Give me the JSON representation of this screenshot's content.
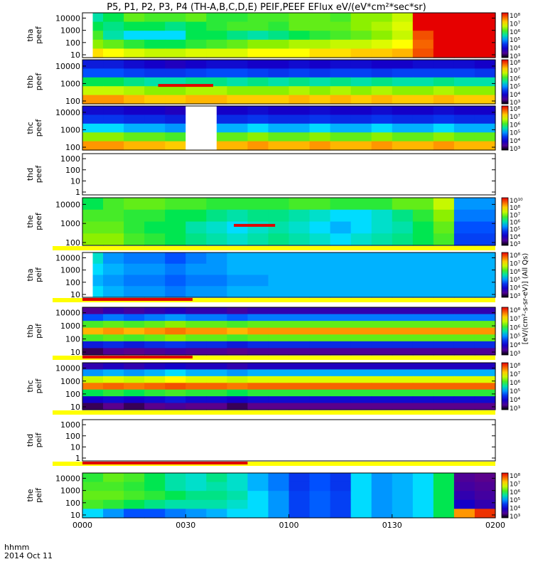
{
  "chart_data": {
    "type": "heatmap",
    "title": "P5, P1, P2, P3, P4 (TH-A,B,C,D,E) PEIF,PEEF EFlux eV/(eV*cm²*sec*sr)",
    "x_axis": {
      "ticks": [
        "0000",
        "0030",
        "0100",
        "0130",
        "0200"
      ],
      "label_left": "hhmm",
      "date_label": "2014 Oct 11",
      "range_minutes": [
        0,
        120
      ]
    },
    "colorbar_unit_label": "[eV/(cm²-s-sr-eV)] (All Qs)",
    "panels": [
      {
        "id": "tha_peef",
        "label1": "tha",
        "label2": "peef",
        "y_ticks": [
          "10",
          "100",
          "1000",
          "10000"
        ],
        "log_y": true,
        "colorbar": [
          "10³",
          "10⁴",
          "10⁵",
          "10⁶",
          "10⁷",
          "10⁸"
        ],
        "grid": [
          [
            50,
            55,
            62,
            60,
            60,
            62,
            58,
            58,
            60,
            60,
            62,
            62,
            60,
            65,
            65,
            70,
            100,
            100,
            100,
            100
          ],
          [
            55,
            52,
            55,
            55,
            52,
            55,
            58,
            60,
            60,
            58,
            62,
            62,
            62,
            65,
            68,
            72,
            100,
            100,
            100,
            100
          ],
          [
            60,
            50,
            45,
            45,
            45,
            55,
            55,
            52,
            50,
            52,
            55,
            58,
            60,
            62,
            65,
            70,
            92,
            100,
            100,
            100
          ],
          [
            65,
            62,
            58,
            55,
            55,
            58,
            60,
            62,
            65,
            65,
            68,
            68,
            70,
            70,
            72,
            75,
            90,
            100,
            100,
            100
          ],
          [
            78,
            75,
            72,
            70,
            70,
            72,
            72,
            72,
            75,
            75,
            75,
            78,
            78,
            80,
            80,
            82,
            92,
            100,
            100,
            100
          ]
        ],
        "gaps": [
          [
            0,
            3
          ]
        ],
        "red_bars": []
      },
      {
        "id": "thb_peef",
        "label1": "thb",
        "label2": "peef",
        "y_ticks": [
          "100",
          "1000",
          "10000"
        ],
        "log_y": true,
        "colorbar": [
          "10³",
          "10⁴",
          "10⁵",
          "10⁶",
          "10⁷",
          "10⁸"
        ],
        "grid": [
          [
            25,
            25,
            22,
            20,
            18,
            20,
            22,
            22,
            20,
            20,
            22,
            20,
            22,
            22,
            20,
            20,
            22,
            22,
            22,
            20
          ],
          [
            35,
            35,
            32,
            30,
            30,
            32,
            34,
            34,
            32,
            30,
            32,
            30,
            32,
            32,
            30,
            32,
            32,
            32,
            32,
            30
          ],
          [
            55,
            55,
            52,
            50,
            50,
            52,
            52,
            50,
            52,
            50,
            52,
            50,
            52,
            50,
            52,
            50,
            50,
            52,
            50,
            50
          ],
          [
            70,
            70,
            68,
            65,
            65,
            68,
            68,
            65,
            65,
            65,
            68,
            65,
            68,
            65,
            68,
            65,
            65,
            68,
            65,
            65
          ],
          [
            85,
            85,
            82,
            80,
            80,
            82,
            82,
            80,
            80,
            80,
            82,
            80,
            82,
            80,
            82,
            80,
            80,
            82,
            80,
            80
          ]
        ],
        "gaps": [],
        "red_bars": [
          [
            22,
            38
          ]
        ]
      },
      {
        "id": "thc_peef",
        "label1": "thc",
        "label2": "peef",
        "y_ticks": [
          "100",
          "1000",
          "10000"
        ],
        "log_y": true,
        "colorbar": [
          "10³",
          "10⁴",
          "10⁵",
          "10⁶",
          "10⁷",
          "10⁸"
        ],
        "grid": [
          [
            22,
            22,
            20,
            20,
            18,
            20,
            20,
            20,
            22,
            20,
            20,
            22,
            20,
            20,
            22,
            20,
            20,
            22,
            20,
            20
          ],
          [
            30,
            30,
            28,
            28,
            26,
            28,
            28,
            28,
            30,
            28,
            28,
            30,
            28,
            28,
            30,
            28,
            28,
            30,
            28,
            28
          ],
          [
            45,
            45,
            42,
            42,
            40,
            42,
            42,
            42,
            45,
            42,
            42,
            45,
            42,
            42,
            45,
            42,
            42,
            45,
            42,
            42
          ],
          [
            65,
            65,
            62,
            62,
            60,
            62,
            62,
            62,
            65,
            62,
            62,
            65,
            62,
            62,
            65,
            62,
            62,
            65,
            62,
            62
          ],
          [
            85,
            85,
            82,
            82,
            80,
            82,
            82,
            82,
            85,
            82,
            82,
            85,
            82,
            82,
            85,
            82,
            82,
            85,
            82,
            82
          ]
        ],
        "gaps": [
          [
            30,
            39
          ]
        ],
        "red_bars": []
      },
      {
        "id": "thd_peef",
        "label1": "thd",
        "label2": "peef",
        "y_ticks": [
          "1",
          "10",
          "100",
          "1000"
        ],
        "log_y": true,
        "colorbar": [],
        "grid": [],
        "gaps": [],
        "red_bars": []
      },
      {
        "id": "the_peef",
        "label1": "the",
        "label2": "peef",
        "y_ticks": [
          "100",
          "1000",
          "10000"
        ],
        "log_y": true,
        "colorbar": [
          "10³",
          "10⁴",
          "10⁵",
          "10⁶",
          "10⁷",
          "10⁸",
          "10¹⁰"
        ],
        "grid": [
          [
            55,
            60,
            62,
            62,
            60,
            60,
            58,
            58,
            58,
            58,
            60,
            60,
            58,
            58,
            58,
            62,
            62,
            70,
            40,
            40
          ],
          [
            60,
            60,
            58,
            58,
            55,
            55,
            52,
            50,
            52,
            52,
            50,
            48,
            45,
            45,
            48,
            52,
            58,
            65,
            38,
            38
          ],
          [
            62,
            62,
            58,
            55,
            55,
            50,
            48,
            45,
            48,
            50,
            48,
            45,
            42,
            45,
            48,
            50,
            55,
            62,
            35,
            35
          ],
          [
            65,
            65,
            60,
            58,
            55,
            52,
            50,
            48,
            50,
            52,
            50,
            48,
            45,
            48,
            50,
            52,
            55,
            60,
            32,
            32
          ]
        ],
        "gaps": [],
        "red_bars": [
          [
            44,
            56
          ]
        ],
        "bottom_strip": "yellow"
      },
      {
        "id": "tha_peif",
        "label1": "tha",
        "label2": "peif",
        "y_ticks": [
          "10",
          "100",
          "1000",
          "10000"
        ],
        "log_y": true,
        "colorbar": [
          "10³",
          "10⁴",
          "10⁵",
          "10⁶",
          "10⁷",
          "10⁸"
        ],
        "grid": [
          [
            48,
            40,
            38,
            38,
            35,
            38,
            40,
            42,
            42,
            42,
            42,
            42,
            42,
            42,
            42,
            42,
            42,
            42,
            42,
            42
          ],
          [
            45,
            42,
            40,
            40,
            38,
            40,
            40,
            42,
            42,
            42,
            42,
            42,
            42,
            42,
            42,
            42,
            42,
            42,
            42,
            42
          ],
          [
            42,
            40,
            38,
            38,
            36,
            38,
            38,
            40,
            40,
            42,
            42,
            42,
            42,
            42,
            42,
            42,
            42,
            42,
            42,
            42
          ],
          [
            45,
            42,
            40,
            40,
            38,
            40,
            40,
            42,
            42,
            42,
            42,
            42,
            42,
            42,
            42,
            42,
            42,
            42,
            42,
            42
          ]
        ],
        "gaps": [
          [
            0,
            3
          ]
        ],
        "red_bars": [
          [
            0,
            32
          ]
        ],
        "bottom_strip": "yellow"
      },
      {
        "id": "thb_peif",
        "label1": "thb",
        "label2": "peif",
        "y_ticks": [
          "10",
          "100",
          "1000",
          "10000"
        ],
        "log_y": true,
        "colorbar": [
          "10³",
          "10⁴",
          "10⁵",
          "10⁶",
          "10⁷",
          "10⁸"
        ],
        "grid": [
          [
            10,
            15,
            12,
            15,
            18,
            15,
            15,
            12,
            15,
            15,
            15,
            15,
            15,
            15,
            15,
            15,
            15,
            15,
            15,
            15
          ],
          [
            35,
            38,
            36,
            38,
            40,
            38,
            38,
            36,
            38,
            38,
            38,
            38,
            38,
            38,
            38,
            38,
            38,
            38,
            38,
            38
          ],
          [
            60,
            62,
            60,
            62,
            65,
            62,
            62,
            60,
            62,
            62,
            62,
            62,
            62,
            62,
            62,
            62,
            62,
            62,
            62,
            62
          ],
          [
            82,
            85,
            82,
            85,
            88,
            85,
            85,
            82,
            85,
            85,
            85,
            85,
            85,
            85,
            85,
            85,
            85,
            85,
            85,
            85
          ],
          [
            60,
            62,
            60,
            62,
            65,
            62,
            62,
            60,
            62,
            62,
            62,
            62,
            62,
            62,
            62,
            62,
            62,
            62,
            62,
            62
          ],
          [
            25,
            28,
            25,
            28,
            30,
            28,
            28,
            25,
            28,
            28,
            28,
            28,
            28,
            28,
            28,
            28,
            28,
            28,
            28,
            28
          ],
          [
            5,
            10,
            8,
            10,
            12,
            10,
            10,
            8,
            10,
            10,
            10,
            10,
            10,
            10,
            10,
            10,
            10,
            10,
            10,
            10
          ]
        ],
        "gaps": [],
        "red_bars": [
          [
            0,
            32
          ]
        ],
        "bottom_strip": "yellow"
      },
      {
        "id": "thc_peif",
        "label1": "thc",
        "label2": "peif",
        "y_ticks": [
          "10",
          "100",
          "1000",
          "10000"
        ],
        "log_y": true,
        "colorbar": [
          "10³",
          "10⁴",
          "10⁵",
          "10⁶",
          "10⁷",
          "10⁸"
        ],
        "grid": [
          [
            15,
            18,
            15,
            18,
            20,
            18,
            18,
            15,
            18,
            18,
            18,
            18,
            18,
            18,
            18,
            18,
            18,
            18,
            18,
            18
          ],
          [
            40,
            42,
            40,
            42,
            45,
            42,
            42,
            40,
            42,
            42,
            42,
            42,
            42,
            42,
            42,
            42,
            42,
            42,
            42,
            42
          ],
          [
            70,
            72,
            70,
            72,
            75,
            72,
            72,
            70,
            72,
            72,
            72,
            72,
            72,
            72,
            72,
            72,
            72,
            72,
            72,
            72
          ],
          [
            88,
            90,
            88,
            90,
            92,
            90,
            90,
            88,
            90,
            90,
            90,
            90,
            90,
            90,
            90,
            90,
            90,
            90,
            90,
            90
          ],
          [
            55,
            58,
            55,
            58,
            60,
            58,
            58,
            55,
            58,
            58,
            58,
            58,
            58,
            58,
            58,
            58,
            58,
            58,
            58,
            58
          ],
          [
            20,
            22,
            20,
            22,
            25,
            22,
            22,
            20,
            22,
            22,
            22,
            22,
            22,
            22,
            22,
            22,
            22,
            22,
            22,
            22
          ],
          [
            5,
            8,
            5,
            8,
            10,
            8,
            8,
            5,
            8,
            8,
            8,
            8,
            8,
            8,
            8,
            8,
            8,
            8,
            8,
            8
          ]
        ],
        "gaps": [],
        "red_bars": [],
        "bottom_strip": "yellow"
      },
      {
        "id": "thd_peif",
        "label1": "thd",
        "label2": "peif",
        "y_ticks": [
          "1",
          "10",
          "100",
          "1000"
        ],
        "log_y": true,
        "colorbar": [],
        "grid": [],
        "gaps": [],
        "red_bars": [
          [
            0,
            48
          ]
        ],
        "bottom_strip": "yellow"
      },
      {
        "id": "the_peif",
        "label1": "the",
        "label2": "peif",
        "y_ticks": [
          "10",
          "100",
          "1000",
          "10000"
        ],
        "log_y": true,
        "colorbar": [
          "10³",
          "10⁴",
          "10⁵",
          "10⁶",
          "10⁷",
          "10⁸"
        ],
        "grid": [
          [
            58,
            62,
            60,
            55,
            50,
            48,
            52,
            48,
            42,
            38,
            30,
            35,
            30,
            45,
            40,
            42,
            45,
            55,
            10,
            8
          ],
          [
            60,
            60,
            58,
            55,
            50,
            48,
            50,
            48,
            42,
            38,
            30,
            35,
            30,
            45,
            40,
            42,
            45,
            55,
            12,
            10
          ],
          [
            62,
            62,
            60,
            58,
            55,
            52,
            52,
            50,
            45,
            40,
            32,
            36,
            32,
            45,
            40,
            42,
            45,
            55,
            15,
            12
          ],
          [
            60,
            58,
            55,
            52,
            50,
            50,
            50,
            48,
            45,
            40,
            32,
            36,
            32,
            45,
            40,
            42,
            45,
            55,
            20,
            15
          ],
          [
            45,
            40,
            35,
            35,
            38,
            40,
            42,
            45,
            45,
            40,
            32,
            36,
            32,
            45,
            40,
            42,
            45,
            55,
            85,
            95
          ]
        ],
        "gaps": [],
        "red_bars": []
      }
    ]
  }
}
